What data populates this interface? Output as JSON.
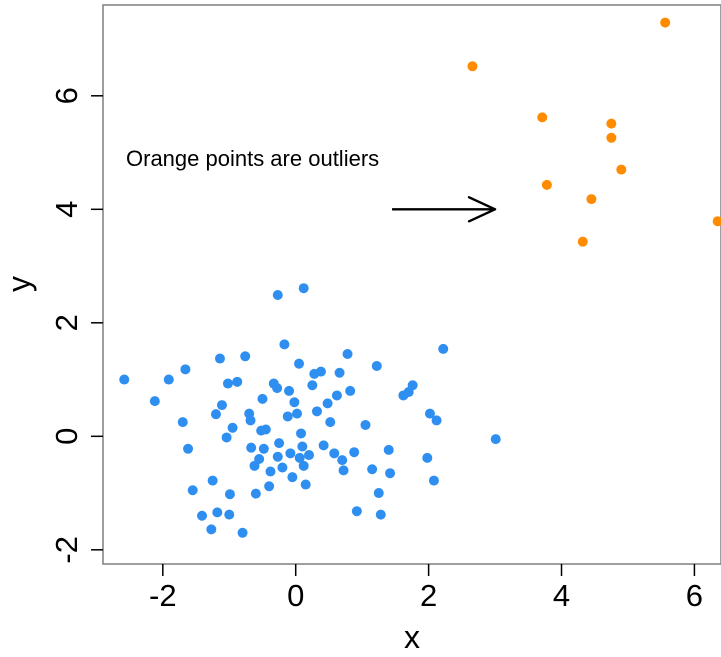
{
  "chart_data": {
    "type": "scatter",
    "xlabel": "x",
    "ylabel": "y",
    "xlim": [
      -2.9,
      6.4
    ],
    "ylim": [
      -2.25,
      7.6
    ],
    "xticks": [
      -2,
      0,
      2,
      4,
      6
    ],
    "yticks": [
      -2,
      0,
      2,
      4,
      6
    ],
    "xtick_labels": [
      "-2",
      "0",
      "2",
      "4",
      "6"
    ],
    "ytick_labels": [
      "-2",
      "0",
      "2",
      "4",
      "6"
    ],
    "grid": false,
    "annotation": {
      "text": "Orange points are outliers",
      "arrow_from": [
        1.45,
        4.0
      ],
      "arrow_to": [
        3.0,
        4.0
      ]
    },
    "series": [
      {
        "color": "#2E8FF0",
        "x": [
          -2.58,
          -2.12,
          -1.91,
          -1.7,
          -1.66,
          -1.62,
          -1.55,
          -1.25,
          -1.2,
          -1.18,
          -1.14,
          -1.11,
          -1.04,
          -1.02,
          -1.0,
          -0.95,
          -0.88,
          -0.8,
          -0.76,
          -0.7,
          -0.68,
          -0.67,
          -0.62,
          -0.6,
          -0.55,
          -0.52,
          -0.5,
          -0.48,
          -0.45,
          -0.4,
          -0.38,
          -0.33,
          -0.28,
          -0.27,
          -0.25,
          -0.2,
          -0.17,
          -0.12,
          -0.1,
          -0.08,
          -0.05,
          -0.02,
          0.02,
          0.05,
          0.06,
          0.08,
          0.1,
          0.12,
          0.15,
          0.2,
          0.25,
          0.28,
          0.32,
          0.38,
          0.42,
          0.48,
          0.52,
          0.58,
          0.62,
          0.66,
          0.7,
          0.72,
          0.78,
          0.82,
          0.88,
          0.92,
          1.05,
          1.15,
          1.22,
          1.25,
          1.28,
          1.4,
          1.42,
          1.62,
          1.7,
          1.76,
          1.98,
          2.02,
          2.08,
          2.12,
          2.22,
          3.01,
          -0.99,
          -0.27,
          0.12,
          -1.41,
          -1.27
        ],
        "y": [
          1.0,
          0.62,
          1.0,
          0.25,
          1.18,
          -0.22,
          -0.95,
          -0.78,
          0.39,
          -1.34,
          1.37,
          0.55,
          -0.02,
          0.93,
          -1.38,
          0.15,
          0.96,
          -1.7,
          1.41,
          0.4,
          0.28,
          -0.2,
          -0.52,
          -1.01,
          -0.4,
          0.1,
          0.66,
          -0.22,
          0.12,
          -0.88,
          -0.62,
          0.93,
          0.85,
          -0.36,
          -0.12,
          -0.55,
          1.62,
          0.35,
          0.8,
          -0.3,
          -0.72,
          0.6,
          0.4,
          1.28,
          -0.38,
          0.05,
          -0.18,
          -0.52,
          -0.85,
          -0.33,
          0.9,
          1.1,
          0.44,
          1.14,
          -0.16,
          0.58,
          0.25,
          -0.3,
          0.72,
          1.12,
          -0.42,
          -0.6,
          1.45,
          0.8,
          -0.28,
          -1.32,
          0.2,
          -0.58,
          1.24,
          -1.0,
          -1.38,
          -0.24,
          -0.65,
          0.72,
          0.78,
          0.9,
          -0.38,
          0.4,
          -0.78,
          0.28,
          1.54,
          -0.05,
          -1.02,
          2.49,
          2.61,
          -1.4,
          -1.64
        ],
        "name": ""
      },
      {
        "color": "#FF8C00",
        "x": [
          2.66,
          3.71,
          3.78,
          4.32,
          4.45,
          4.75,
          4.75,
          4.9,
          5.56,
          6.35
        ],
        "y": [
          6.52,
          5.62,
          4.43,
          3.43,
          4.18,
          5.51,
          5.26,
          4.7,
          7.29,
          3.79
        ],
        "name": ""
      }
    ]
  }
}
